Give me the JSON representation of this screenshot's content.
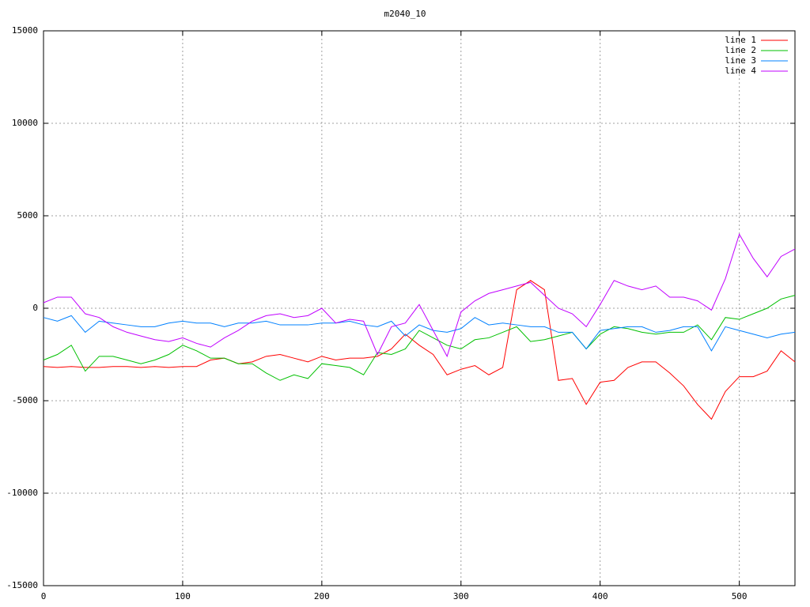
{
  "chart_data": {
    "type": "line",
    "title": "m2040_10",
    "x": [
      0,
      10,
      20,
      30,
      40,
      50,
      60,
      70,
      80,
      90,
      100,
      110,
      120,
      130,
      140,
      150,
      160,
      170,
      180,
      190,
      200,
      210,
      220,
      230,
      240,
      250,
      260,
      270,
      280,
      290,
      300,
      310,
      320,
      330,
      340,
      350,
      360,
      370,
      380,
      390,
      400,
      410,
      420,
      430,
      440,
      450,
      460,
      470,
      480,
      490,
      500,
      510,
      520,
      530,
      540
    ],
    "series": [
      {
        "name": "line 1",
        "color": "#ff0000",
        "values": [
          -3150,
          -3200,
          -3150,
          -3200,
          -3200,
          -3150,
          -3150,
          -3200,
          -3150,
          -3200,
          -3150,
          -3150,
          -2800,
          -2700,
          -3000,
          -2900,
          -2600,
          -2500,
          -2700,
          -2900,
          -2600,
          -2800,
          -2700,
          -2700,
          -2600,
          -2200,
          -1400,
          -2000,
          -2500,
          -3600,
          -3300,
          -3100,
          -3600,
          -3200,
          1000,
          1500,
          1000,
          -3900,
          -3800,
          -5200,
          -4000,
          -3900,
          -3200,
          -2900,
          -2900,
          -3500,
          -4200,
          -5200,
          -6000,
          -4500,
          -3700,
          -3700,
          -3400,
          -2300,
          -2900
        ]
      },
      {
        "name": "line 2",
        "color": "#00c000",
        "values": [
          -2800,
          -2500,
          -2000,
          -3400,
          -2600,
          -2600,
          -2800,
          -3000,
          -2800,
          -2500,
          -2000,
          -2300,
          -2700,
          -2700,
          -3000,
          -3000,
          -3500,
          -3900,
          -3600,
          -3800,
          -3000,
          -3100,
          -3200,
          -3600,
          -2400,
          -2500,
          -2200,
          -1200,
          -1600,
          -2000,
          -2200,
          -1700,
          -1600,
          -1300,
          -1000,
          -1800,
          -1700,
          -1500,
          -1300,
          -2200,
          -1400,
          -1000,
          -1100,
          -1300,
          -1400,
          -1300,
          -1300,
          -900,
          -1700,
          -500,
          -600,
          -300,
          0,
          500,
          700
        ]
      },
      {
        "name": "line 3",
        "color": "#0080ff",
        "values": [
          -500,
          -700,
          -400,
          -1300,
          -700,
          -800,
          -900,
          -1000,
          -1000,
          -800,
          -700,
          -800,
          -800,
          -1000,
          -800,
          -800,
          -700,
          -900,
          -900,
          -900,
          -800,
          -800,
          -700,
          -900,
          -1000,
          -700,
          -1500,
          -900,
          -1200,
          -1300,
          -1100,
          -500,
          -900,
          -800,
          -900,
          -1000,
          -1000,
          -1300,
          -1300,
          -2200,
          -1200,
          -1100,
          -1000,
          -1000,
          -1300,
          -1200,
          -1000,
          -1000,
          -2300,
          -1000,
          -1200,
          -1400,
          -1600,
          -1400,
          -1300
        ]
      },
      {
        "name": "line 4",
        "color": "#c000ff",
        "values": [
          300,
          600,
          600,
          -300,
          -500,
          -1000,
          -1300,
          -1500,
          -1700,
          -1800,
          -1600,
          -1900,
          -2100,
          -1600,
          -1200,
          -700,
          -400,
          -300,
          -500,
          -400,
          0,
          -800,
          -600,
          -700,
          -2500,
          -1000,
          -800,
          200,
          -1200,
          -2600,
          -200,
          400,
          800,
          1000,
          1200,
          1400,
          700,
          0,
          -300,
          -1000,
          200,
          1500,
          1200,
          1000,
          1200,
          600,
          600,
          400,
          -100,
          1600,
          4000,
          2700,
          1700,
          2800,
          3200
        ]
      }
    ],
    "xlim": [
      0,
      540
    ],
    "xticks": [
      0,
      100,
      200,
      300,
      400,
      500
    ],
    "ylim": [
      -15000,
      15000
    ],
    "yticks": [
      -15000,
      -10000,
      -5000,
      0,
      5000,
      10000,
      15000
    ],
    "grid": true,
    "legend": "top-right"
  }
}
